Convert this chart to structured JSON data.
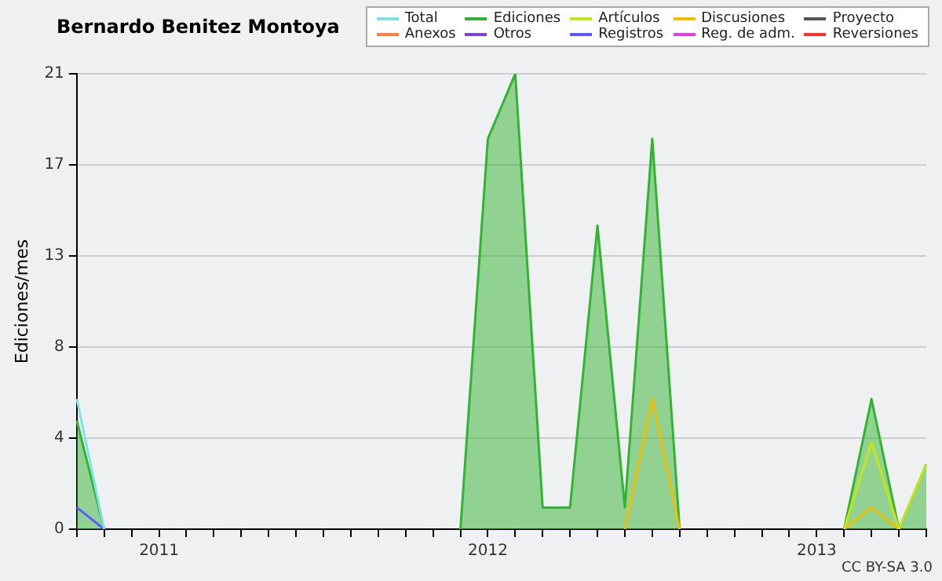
{
  "chart_data": {
    "type": "line",
    "title": "Bernardo Benitez Montoya",
    "ylabel": "Ediciones/mes",
    "categories": [
      null,
      null,
      null,
      "2011",
      null,
      null,
      null,
      null,
      null,
      null,
      null,
      null,
      null,
      null,
      null,
      "2012",
      null,
      null,
      null,
      null,
      null,
      null,
      null,
      null,
      null,
      null,
      null,
      "2013",
      null,
      null,
      null,
      null
    ],
    "series": [
      {
        "name": "Total",
        "color": "#7fe3e3",
        "type": "line",
        "values": [
          6,
          0,
          null,
          null,
          null,
          null,
          null,
          null,
          null,
          null,
          null,
          null,
          null,
          null,
          null,
          null,
          null,
          null,
          null,
          null,
          null,
          null,
          null,
          null,
          null,
          null,
          null,
          null,
          null,
          null,
          null,
          null
        ]
      },
      {
        "name": "Ediciones",
        "color": "#33b333",
        "type": "area",
        "values": [
          5,
          0,
          null,
          null,
          null,
          null,
          null,
          null,
          null,
          null,
          null,
          null,
          null,
          null,
          0,
          18,
          21,
          1,
          1,
          14,
          1,
          18,
          0,
          null,
          null,
          null,
          null,
          null,
          0,
          6,
          0,
          3
        ]
      },
      {
        "name": "Artículos",
        "color": "#c4e619",
        "type": "line",
        "values": [
          null,
          null,
          null,
          null,
          null,
          null,
          null,
          null,
          null,
          null,
          null,
          null,
          null,
          null,
          null,
          null,
          null,
          null,
          null,
          null,
          null,
          null,
          null,
          null,
          null,
          null,
          null,
          null,
          0,
          4,
          0,
          3
        ]
      },
      {
        "name": "Discusiones",
        "color": "#f0c000",
        "type": "line",
        "values": [
          null,
          null,
          null,
          null,
          null,
          null,
          null,
          null,
          null,
          null,
          null,
          null,
          null,
          null,
          null,
          null,
          null,
          null,
          null,
          null,
          0,
          6,
          0,
          null,
          null,
          null,
          null,
          null,
          0,
          1,
          0,
          null
        ]
      },
      {
        "name": "Proyecto",
        "color": "#555555",
        "type": "line",
        "values": [
          null,
          null,
          null,
          null,
          null,
          null,
          null,
          null,
          null,
          null,
          null,
          null,
          null,
          null,
          null,
          null,
          null,
          null,
          null,
          null,
          null,
          null,
          null,
          null,
          null,
          null,
          null,
          null,
          null,
          null,
          null,
          null
        ]
      },
      {
        "name": "Anexos",
        "color": "#ff8040",
        "type": "line",
        "values": [
          null,
          null,
          null,
          null,
          null,
          null,
          null,
          null,
          null,
          null,
          null,
          null,
          null,
          null,
          null,
          null,
          null,
          null,
          null,
          null,
          null,
          null,
          null,
          null,
          null,
          null,
          null,
          null,
          null,
          null,
          null,
          null
        ]
      },
      {
        "name": "Otros",
        "color": "#8040e0",
        "type": "line",
        "values": [
          null,
          null,
          null,
          null,
          null,
          null,
          null,
          null,
          null,
          null,
          null,
          null,
          null,
          null,
          null,
          null,
          null,
          null,
          null,
          null,
          null,
          null,
          null,
          null,
          null,
          null,
          null,
          null,
          null,
          null,
          null,
          null
        ]
      },
      {
        "name": "Registros",
        "color": "#5a5aff",
        "type": "line",
        "values": [
          1,
          0,
          null,
          null,
          null,
          null,
          null,
          null,
          null,
          null,
          null,
          null,
          null,
          null,
          null,
          null,
          null,
          null,
          null,
          null,
          null,
          null,
          null,
          null,
          null,
          null,
          null,
          null,
          null,
          null,
          null,
          null
        ]
      },
      {
        "name": "Reg. de adm.",
        "color": "#e040e0",
        "type": "line",
        "values": [
          null,
          null,
          null,
          null,
          null,
          null,
          null,
          null,
          null,
          null,
          null,
          null,
          null,
          null,
          null,
          null,
          null,
          null,
          null,
          null,
          null,
          null,
          null,
          null,
          null,
          null,
          null,
          null,
          null,
          null,
          null,
          null
        ]
      },
      {
        "name": "Reversiones",
        "color": "#ff3030",
        "type": "line",
        "values": [
          null,
          null,
          null,
          null,
          null,
          null,
          null,
          null,
          null,
          null,
          null,
          null,
          null,
          null,
          null,
          null,
          null,
          null,
          null,
          null,
          null,
          null,
          null,
          null,
          null,
          null,
          null,
          null,
          null,
          null,
          null,
          null
        ]
      }
    ],
    "ylim": [
      0,
      21
    ],
    "yticks": [
      0,
      {
        "value": 4.2,
        "label": "4"
      },
      {
        "value": 8.4,
        "label": "8"
      },
      {
        "value": 12.6,
        "label": "13"
      },
      {
        "value": 16.8,
        "label": "17"
      },
      21
    ],
    "grid": "y",
    "legend": "top right",
    "marker": "none",
    "line_style": "solid",
    "annotations": [
      "CC BY-SA 3.0"
    ]
  }
}
